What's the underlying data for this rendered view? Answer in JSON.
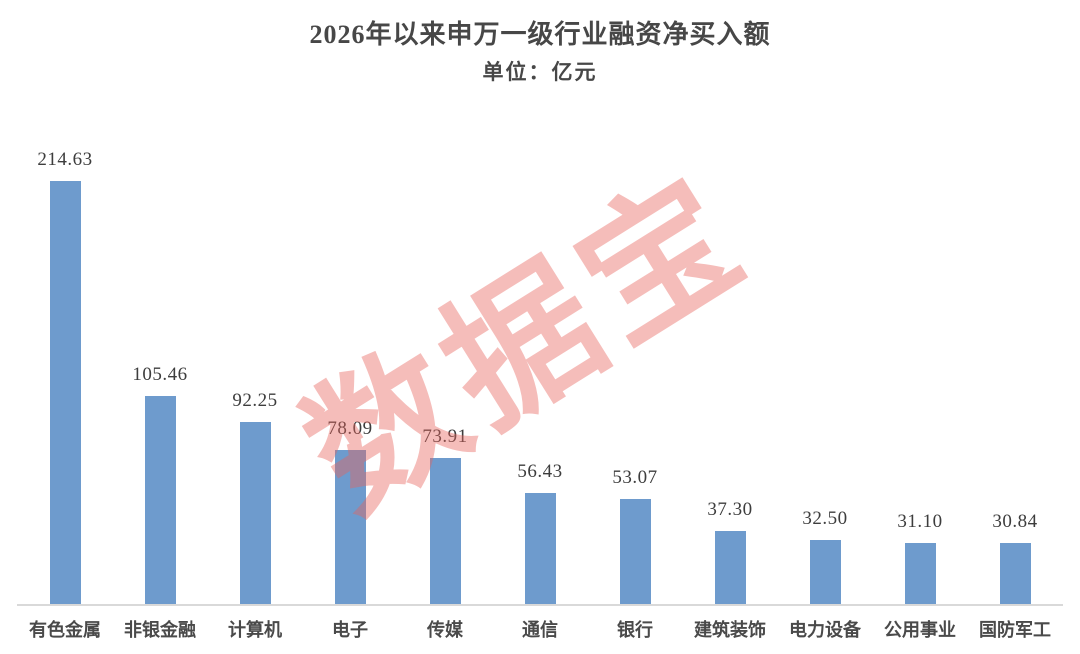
{
  "header": {
    "title": "2026年以来申万一级行业融资净买入额",
    "subtitle": "单位：亿元"
  },
  "watermark": {
    "text": "数据宝"
  },
  "colors": {
    "bar": "#6E9BCD",
    "axis_line": "#D9D9D9",
    "title_text": "#474747",
    "value_text": "#3D3D3D",
    "category_text": "#4A4A4A",
    "watermark": "rgba(231,98,91,0.42)"
  },
  "chart_data": {
    "type": "bar",
    "title": "2026年以来申万一级行业融资净买入额",
    "subtitle": "单位：亿元",
    "unit": "亿元",
    "categories": [
      "有色金属",
      "非银金融",
      "计算机",
      "电子",
      "传媒",
      "通信",
      "银行",
      "建筑装饰",
      "电力设备",
      "公用事业",
      "国防军工"
    ],
    "values": [
      214.63,
      105.46,
      92.25,
      78.09,
      73.91,
      56.43,
      53.07,
      37.3,
      32.5,
      31.1,
      30.84
    ],
    "value_label_decimals": 2,
    "xlabel": "",
    "ylabel": "",
    "ylim": [
      0,
      230
    ],
    "grid": false,
    "legend": false,
    "data_labels": "above-bars"
  }
}
